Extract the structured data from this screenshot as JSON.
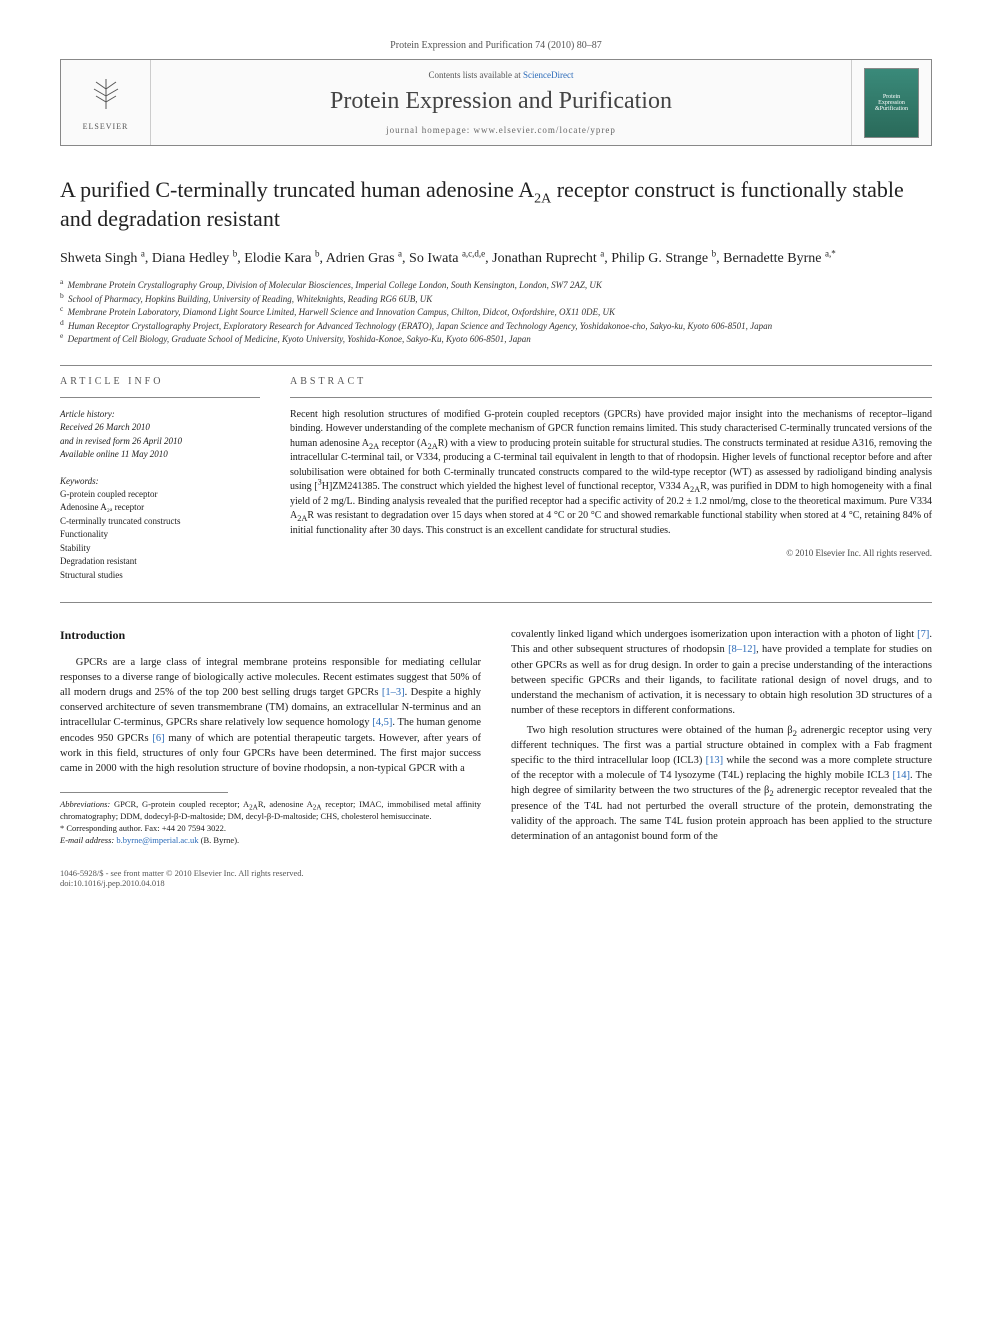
{
  "page_header": "Protein Expression and Purification 74 (2010) 80–87",
  "masthead": {
    "contents_line_pre": "Contents lists available at ",
    "contents_link": "ScienceDirect",
    "journal_name": "Protein Expression and Purification",
    "homepage_line": "journal homepage: www.elsevier.com/locate/yprep",
    "elsevier_text": "ELSEVIER"
  },
  "title_html": "A purified C-terminally truncated human adenosine A<sub>2A</sub> receptor construct is functionally stable and degradation resistant",
  "authors_html": "Shweta Singh <sup>a</sup>, Diana Hedley <sup>b</sup>, Elodie Kara <sup>b</sup>, Adrien Gras <sup>a</sup>, So Iwata <sup>a,c,d,e</sup>, Jonathan Ruprecht <sup>a</sup>, Philip G. Strange <sup>b</sup>, Bernadette Byrne <sup>a,*</sup>",
  "affiliations": [
    {
      "sup": "a",
      "text": "Membrane Protein Crystallography Group, Division of Molecular Biosciences, Imperial College London, South Kensington, London, SW7 2AZ, UK"
    },
    {
      "sup": "b",
      "text": "School of Pharmacy, Hopkins Building, University of Reading, Whiteknights, Reading RG6 6UB, UK"
    },
    {
      "sup": "c",
      "text": "Membrane Protein Laboratory, Diamond Light Source Limited, Harwell Science and Innovation Campus, Chilton, Didcot, Oxfordshire, OX11 0DE, UK"
    },
    {
      "sup": "d",
      "text": "Human Receptor Crystallography Project, Exploratory Research for Advanced Technology (ERATO), Japan Science and Technology Agency, Yoshidakonoe-cho, Sakyo-ku, Kyoto 606-8501, Japan"
    },
    {
      "sup": "e",
      "text": "Department of Cell Biology, Graduate School of Medicine, Kyoto University, Yoshida-Konoe, Sakyo-Ku, Kyoto 606-8501, Japan"
    }
  ],
  "article_info": {
    "heading": "ARTICLE INFO",
    "history_label": "Article history:",
    "history": [
      "Received 26 March 2010",
      "and in revised form 26 April 2010",
      "Available online 11 May 2010"
    ],
    "keywords_label": "Keywords:",
    "keywords": [
      "G-protein coupled receptor",
      "Adenosine A₂ₐ receptor",
      "C-terminally truncated constructs",
      "Functionality",
      "Stability",
      "Degradation resistant",
      "Structural studies"
    ]
  },
  "abstract": {
    "heading": "ABSTRACT",
    "text_html": "Recent high resolution structures of modified G-protein coupled receptors (GPCRs) have provided major insight into the mechanisms of receptor–ligand binding. However understanding of the complete mechanism of GPCR function remains limited. This study characterised C-terminally truncated versions of the human adenosine A<sub>2A</sub> receptor (A<sub>2A</sub>R) with a view to producing protein suitable for structural studies. The constructs terminated at residue A316, removing the intracellular C-terminal tail, or V334, producing a C-terminal tail equivalent in length to that of rhodopsin. Higher levels of functional receptor before and after solubilisation were obtained for both C-terminally truncated constructs compared to the wild-type receptor (WT) as assessed by radioligand binding analysis using [<sup>3</sup>H]ZM241385. The construct which yielded the highest level of functional receptor, V334 A<sub>2A</sub>R, was purified in DDM to high homogeneity with a final yield of 2 mg/L. Binding analysis revealed that the purified receptor had a specific activity of 20.2 ± 1.2 nmol/mg, close to the theoretical maximum. Pure V334 A<sub>2A</sub>R was resistant to degradation over 15 days when stored at 4 °C or 20 °C and showed remarkable functional stability when stored at 4 °C, retaining 84% of initial functionality after 30 days. This construct is an excellent candidate for structural studies.",
    "copyright": "© 2010 Elsevier Inc. All rights reserved."
  },
  "body": {
    "intro_heading": "Introduction",
    "col1_paras_html": [
      "GPCRs are a large class of integral membrane proteins responsible for mediating cellular responses to a diverse range of biologically active molecules. Recent estimates suggest that 50% of all modern drugs and 25% of the top 200 best selling drugs target GPCRs <span class='ref-link'>[1–3]</span>. Despite a highly conserved architecture of seven transmembrane (TM) domains, an extracellular N-terminus and an intracellular C-terminus, GPCRs share relatively low sequence homology <span class='ref-link'>[4,5]</span>. The human genome encodes 950 GPCRs <span class='ref-link'>[6]</span> many of which are potential therapeutic targets. However, after years of work in this field, structures of only four GPCRs have been determined. The first major success came in 2000 with the high resolution structure of bovine rhodopsin, a non-typical GPCR with a"
    ],
    "col2_paras_html": [
      "covalently linked ligand which undergoes isomerization upon interaction with a photon of light <span class='ref-link'>[7]</span>. This and other subsequent structures of rhodopsin <span class='ref-link'>[8–12]</span>, have provided a template for studies on other GPCRs as well as for drug design. In order to gain a precise understanding of the interactions between specific GPCRs and their ligands, to facilitate rational design of novel drugs, and to understand the mechanism of activation, it is necessary to obtain high resolution 3D structures of a number of these receptors in different conformations.",
      "Two high resolution structures were obtained of the human β<sub>2</sub> adrenergic receptor using very different techniques. The first was a partial structure obtained in complex with a Fab fragment specific to the third intracellular loop (ICL3) <span class='ref-link'>[13]</span> while the second was a more complete structure of the receptor with a molecule of T4 lysozyme (T4L) replacing the highly mobile ICL3 <span class='ref-link'>[14]</span>. The high degree of similarity between the two structures of the β<sub>2</sub> adrenergic receptor revealed that the presence of the T4L had not perturbed the overall structure of the protein, demonstrating the validity of the approach. The same T4L fusion protein approach has been applied to the structure determination of an antagonist bound form of the"
    ]
  },
  "footnotes": {
    "abbrev_label": "Abbreviations:",
    "abbrev_text_html": " GPCR, G-protein coupled receptor; A<sub>2A</sub>R, adenosine A<sub>2A</sub> receptor; IMAC, immobilised metal affinity chromatography; DDM, dodecyl-β-D-maltoside; DM, decyl-β-D-maltoside; CHS, cholesterol hemisuccinate.",
    "corresp_label": "* Corresponding author. Fax: +44 20 7594 3022.",
    "email_label": "E-mail address: ",
    "email": "b.byrne@imperial.ac.uk",
    "email_suffix": " (B. Byrne)."
  },
  "footer": {
    "left": "1046-5928/$ - see front matter © 2010 Elsevier Inc. All rights reserved.",
    "left2": "doi:10.1016/j.pep.2010.04.018"
  },
  "colors": {
    "link": "#2a6ab8",
    "rule": "#888888",
    "text": "#1a1a1a",
    "muted": "#555555",
    "thumb_top": "#3a8a7a",
    "thumb_bottom": "#2a6a5a"
  },
  "typography": {
    "title_size_pt": 22,
    "authors_size_pt": 14,
    "affil_size_pt": 9,
    "body_size_pt": 10.5,
    "abstract_size_pt": 10,
    "journal_name_size_pt": 24
  }
}
